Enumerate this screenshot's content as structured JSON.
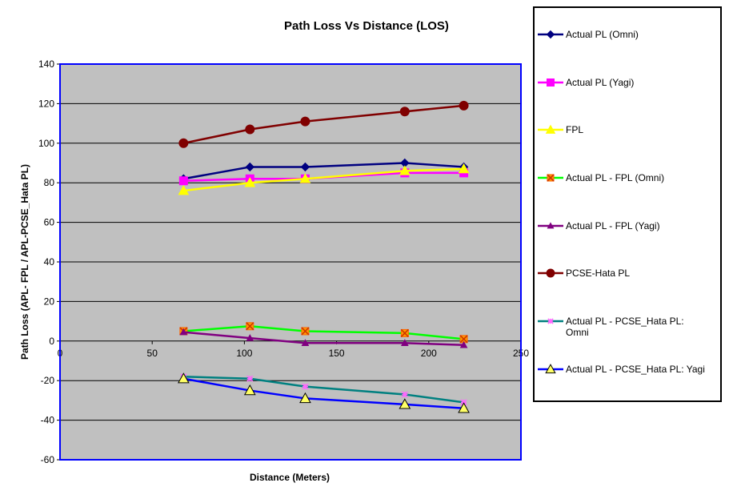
{
  "chart_data": {
    "type": "line",
    "title": "Path Loss Vs Distance (LOS)",
    "xlabel": "Distance (Meters)",
    "ylabel": "Path Loss (APL- FPL / APL-PCSE_Hata PL)",
    "xlim": [
      0,
      250
    ],
    "ylim": [
      -60,
      140
    ],
    "x_ticks": [
      0,
      50,
      100,
      150,
      200,
      250
    ],
    "y_ticks": [
      -60,
      -40,
      -20,
      0,
      20,
      40,
      60,
      80,
      100,
      120,
      140
    ],
    "grid": "horizontal",
    "plot_background": "#c0c0c0",
    "plot_border_color": "#0000ff",
    "legend_position": "right",
    "x": [
      67,
      103,
      133,
      187,
      219
    ],
    "series": [
      {
        "name": "Actual PL (Omni)",
        "color": "#000080",
        "marker": "diamond",
        "values": [
          82,
          88,
          88,
          90,
          88
        ]
      },
      {
        "name": "Actual PL (Yagi)",
        "color": "#ff00ff",
        "marker": "square",
        "values": [
          81,
          82,
          82,
          85,
          85
        ]
      },
      {
        "name": "FPL",
        "color": "#ffff00",
        "marker": "triangle",
        "values": [
          76,
          80,
          82,
          86,
          87
        ]
      },
      {
        "name": "Actual PL - FPL (Omni)",
        "color": "#00ff00",
        "marker": "x-square",
        "values": [
          5,
          7.5,
          5,
          4,
          1
        ]
      },
      {
        "name": "Actual PL - FPL (Yagi)",
        "color": "#800080",
        "marker": "small-triangle",
        "values": [
          4.5,
          1.5,
          -1,
          -1,
          -2
        ]
      },
      {
        "name": "PCSE-Hata PL",
        "color": "#800000",
        "marker": "circle",
        "values": [
          100,
          107,
          111,
          116,
          119
        ]
      },
      {
        "name": "Actual PL - PCSE_Hata PL:\nOmni",
        "color": "#008080",
        "marker": "star",
        "values": [
          -18,
          -19,
          -23,
          -27,
          -31
        ]
      },
      {
        "name": "Actual PL - PCSE_Hata PL: Yagi",
        "color": "#0000ff",
        "marker": "big-triangle",
        "values": [
          -19,
          -25,
          -29,
          -32,
          -34
        ]
      }
    ]
  }
}
